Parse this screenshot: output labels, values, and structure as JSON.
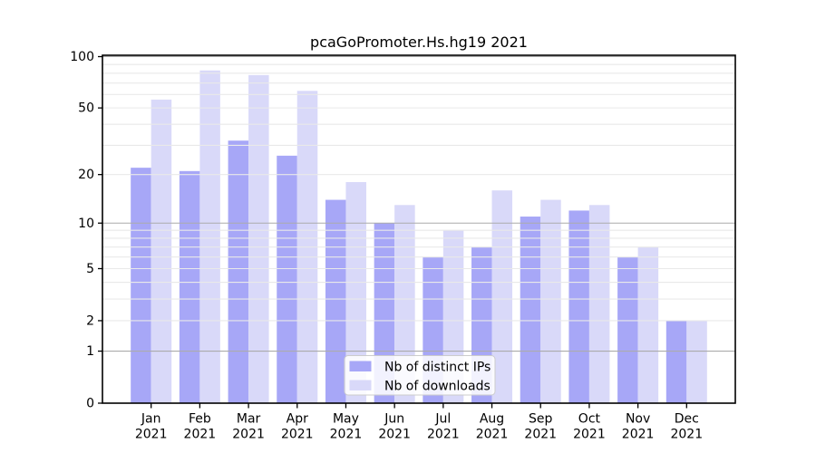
{
  "chart_data": {
    "type": "bar",
    "title": "pcaGoPromoter.Hs.hg19 2021",
    "categories": [
      "Jan 2021",
      "Feb 2021",
      "Mar 2021",
      "Apr 2021",
      "May 2021",
      "Jun 2021",
      "Jul 2021",
      "Aug 2021",
      "Sep 2021",
      "Oct 2021",
      "Nov 2021",
      "Dec 2021"
    ],
    "x_tick_line1": [
      "Jan",
      "Feb",
      "Mar",
      "Apr",
      "May",
      "Jun",
      "Jul",
      "Aug",
      "Sep",
      "Oct",
      "Nov",
      "Dec"
    ],
    "x_tick_line2": [
      "2021",
      "2021",
      "2021",
      "2021",
      "2021",
      "2021",
      "2021",
      "2021",
      "2021",
      "2021",
      "2021",
      "2021"
    ],
    "series": [
      {
        "name": "Nb of distinct IPs",
        "color": "#a7a7f7",
        "values": [
          22,
          21,
          32,
          26,
          14,
          10,
          6,
          7,
          11,
          12,
          6,
          2
        ]
      },
      {
        "name": "Nb of downloads",
        "color": "#d9d9f9",
        "values": [
          56,
          83,
          78,
          63,
          18,
          13,
          9,
          16,
          14,
          13,
          7,
          2
        ]
      }
    ],
    "y_axis": {
      "scale": "log10(1+value)",
      "tick_values": [
        100,
        50,
        20,
        10,
        5,
        2,
        1,
        0
      ],
      "minor_gridlines": [
        2,
        3,
        4,
        5,
        6,
        7,
        8,
        9,
        20,
        30,
        40,
        50,
        60,
        70,
        80,
        90
      ],
      "major_gridlines": [
        1,
        10,
        100
      ],
      "ylim": [
        0,
        100
      ]
    },
    "legend": {
      "position": "lower center",
      "items": [
        "Nb of distinct IPs",
        "Nb of downloads"
      ]
    },
    "grid": true
  },
  "colors": {
    "background": "#ffffff",
    "bar_distinct_ips": "#a7a7f7",
    "bar_downloads": "#d9d9f9",
    "minor_gridline": "#e9e9e9",
    "major_gridline": "#ababab",
    "axis_spine": "#000000",
    "legend_border": "#cccccc",
    "legend_background": "rgba(255,255,255,0.85)",
    "text": "#000000"
  }
}
